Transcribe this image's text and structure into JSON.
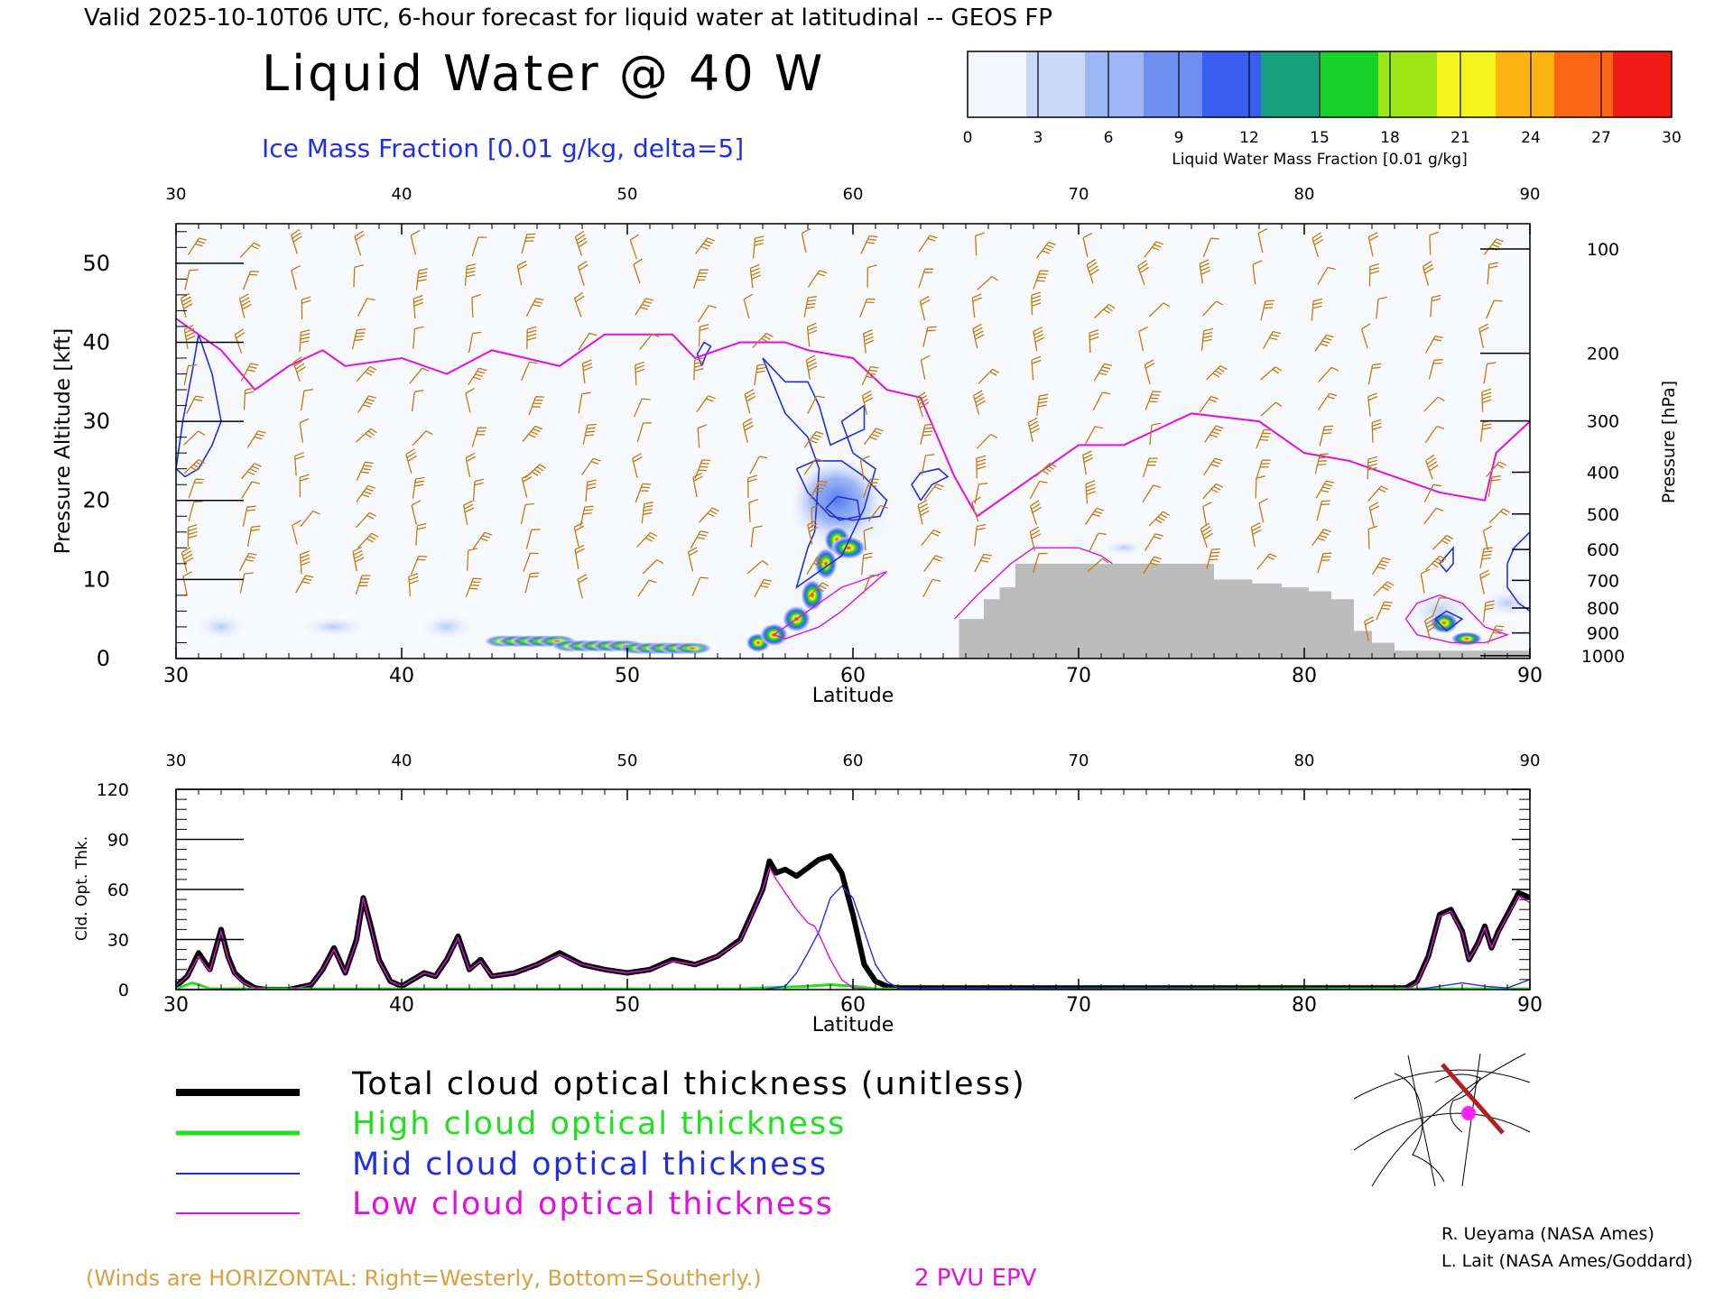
{
  "header": {
    "valid_line": "Valid 2025-10-10T06 UTC, 6-hour forecast for liquid water at latitudinal -- GEOS FP",
    "main_title": "Liquid Water @ 40 W",
    "ice_label": "Ice Mass Fraction [0.01 g/kg, delta=5]"
  },
  "colorbar": {
    "ticks": [
      "0",
      "3",
      "6",
      "9",
      "12",
      "15",
      "18",
      "21",
      "24",
      "27",
      "30"
    ],
    "label": "Liquid Water Mass Fraction [0.01 g/kg]",
    "colors": [
      "#f4f6fe",
      "#c9d8fb",
      "#9db7f6",
      "#6f8ff0",
      "#3a5ef0",
      "#1aa07f",
      "#17d02a",
      "#9de61a",
      "#f4f51c",
      "#fbb414",
      "#fb6616",
      "#f01b14"
    ]
  },
  "colors": {
    "ice_contour": "#2030e0",
    "epv_line": "#e010e0",
    "wind_barb": "#c07a10",
    "terrain": "#bcbcbc",
    "total_line": "#000000",
    "high_line": "#20e020",
    "mid_line": "#2030e0",
    "low_line": "#e010e0"
  },
  "top_panel": {
    "x_ticks": [
      "30",
      "40",
      "50",
      "60",
      "70",
      "80",
      "90"
    ],
    "x_label": "Latitude",
    "y_ticks": [
      "0",
      "10",
      "20",
      "30",
      "40",
      "50"
    ],
    "y_label": "Pressure Altitude [kft]",
    "p_ticks": [
      "100",
      "200",
      "300",
      "400",
      "500",
      "600",
      "700",
      "800",
      "900",
      "1000"
    ],
    "p_label": "Pressure [hPa]"
  },
  "bottom_panel": {
    "x_ticks": [
      "30",
      "40",
      "50",
      "60",
      "70",
      "80",
      "90"
    ],
    "x_label": "Latitude",
    "y_ticks": [
      "0",
      "30",
      "60",
      "90",
      "120"
    ],
    "y_label": "Cld. Opt. Thk."
  },
  "legend": {
    "total": "Total cloud optical thickness (unitless)",
    "high": "High cloud optical thickness",
    "mid": "Mid cloud optical thickness",
    "low": "Low cloud optical thickness"
  },
  "footer": {
    "winds_note": "(Winds are HORIZONTAL: Right=Westerly, Bottom=Southerly.)",
    "epv_label": "2 PVU EPV",
    "credit_1": "R. Ueyama (NASA Ames)",
    "credit_2": "L. Lait (NASA Ames/Goddard)"
  },
  "chart_data": [
    {
      "type": "heatmap",
      "title": "Liquid Water @ 40 W",
      "xlabel": "Latitude",
      "ylabel": "Pressure Altitude [kft]",
      "xlim": [
        30,
        90
      ],
      "ylim": [
        0,
        55
      ],
      "secondary_ylabel": "Pressure [hPa]",
      "colorbar_range": [
        0,
        30
      ],
      "liquid_water_features": [
        {
          "lat_range": [
            45,
            53
          ],
          "alt_kft": 2,
          "max_value": 19
        },
        {
          "lat_range": [
            55,
            61
          ],
          "alt_kft": [
            0,
            17
          ],
          "max_value": 25
        },
        {
          "lat_range": [
            85,
            89
          ],
          "alt_kft": [
            1,
            5
          ],
          "max_value": 22
        }
      ],
      "epv_2pvu_line": {
        "lat": [
          30,
          32,
          33.5,
          35,
          36.5,
          37.5,
          40,
          42,
          44,
          47,
          49,
          52,
          53,
          55,
          57,
          58,
          60,
          61.5,
          63,
          64.5,
          65.5,
          67,
          70,
          72,
          75,
          78,
          80,
          82,
          84,
          86,
          88,
          88.5,
          90
        ],
        "kft": [
          43,
          39,
          34,
          37,
          39,
          37,
          38,
          36,
          39,
          37,
          41,
          41,
          38,
          40,
          40,
          39,
          38,
          34,
          33,
          23,
          18,
          21,
          27,
          27,
          31,
          30,
          26,
          25,
          23,
          21,
          20,
          26,
          30
        ]
      },
      "terrain_kft": {
        "lat": [
          30,
          64.7,
          65.8,
          66.5,
          67.2,
          76,
          77.7,
          79,
          80.2,
          81.2,
          82.2,
          83,
          84,
          90
        ],
        "kft": [
          0,
          5,
          7.5,
          9,
          12,
          10,
          9.5,
          9,
          8.5,
          7.5,
          3.5,
          2,
          1,
          0
        ]
      }
    },
    {
      "type": "line",
      "xlabel": "Latitude",
      "ylabel": "Cld. Opt. Thk.",
      "xlim": [
        30,
        90
      ],
      "ylim": [
        0,
        120
      ],
      "series": [
        {
          "name": "Total cloud optical thickness (unitless)",
          "x": [
            30,
            30.5,
            31,
            31.5,
            32,
            32.3,
            32.6,
            33,
            33.5,
            34,
            35,
            36,
            36.5,
            37,
            37.5,
            38,
            38.3,
            38.6,
            39,
            39.5,
            40,
            41,
            41.5,
            42,
            42.5,
            43,
            43.5,
            44,
            45,
            46,
            47,
            48,
            49,
            50,
            51,
            52,
            53,
            54,
            55,
            55.5,
            56,
            56.3,
            56.6,
            57,
            57.5,
            58,
            58.5,
            59,
            59.5,
            60,
            60.5,
            61,
            61.5,
            62,
            63,
            70,
            80,
            84.5,
            85,
            85.5,
            86,
            86.5,
            87,
            87.3,
            87.7,
            88,
            88.3,
            88.6,
            89,
            89.5,
            90
          ],
          "values": [
            2,
            8,
            22,
            12,
            36,
            20,
            10,
            5,
            1,
            0,
            0,
            3,
            12,
            25,
            10,
            30,
            55,
            40,
            18,
            5,
            2,
            10,
            8,
            18,
            32,
            12,
            18,
            8,
            10,
            15,
            22,
            15,
            12,
            10,
            12,
            18,
            15,
            20,
            30,
            45,
            60,
            77,
            70,
            72,
            68,
            73,
            78,
            80,
            70,
            45,
            15,
            5,
            2,
            1,
            1,
            1,
            1,
            1,
            5,
            20,
            45,
            48,
            35,
            18,
            28,
            38,
            25,
            35,
            45,
            58,
            55
          ]
        },
        {
          "name": "High cloud optical thickness",
          "x": [
            30,
            30.7,
            31,
            31.5,
            32,
            55,
            58,
            59,
            60,
            61,
            62,
            90
          ],
          "values": [
            0.5,
            4,
            3,
            0.5,
            0.5,
            0.5,
            2,
            3,
            2,
            0.5,
            0.3,
            0.5
          ]
        },
        {
          "name": "Mid cloud optical thickness",
          "x": [
            30,
            56,
            57,
            57.5,
            58,
            58.5,
            59,
            59.5,
            60,
            60.5,
            61,
            61.5,
            62,
            85,
            86,
            87,
            88,
            89,
            90
          ],
          "values": [
            0,
            0,
            2,
            10,
            22,
            35,
            55,
            62,
            55,
            35,
            15,
            5,
            1,
            0,
            2,
            4,
            2,
            1,
            6
          ]
        },
        {
          "name": "Low cloud optical thickness",
          "x": [
            30,
            30.5,
            31,
            31.5,
            32,
            32.3,
            32.6,
            33,
            33.5,
            34,
            35,
            36,
            36.5,
            37,
            37.5,
            38,
            38.3,
            38.6,
            39,
            39.5,
            40,
            41,
            41.5,
            42,
            42.5,
            43,
            43.5,
            44,
            45,
            46,
            47,
            48,
            49,
            50,
            51,
            52,
            53,
            54,
            55,
            55.5,
            56,
            56.3,
            56.6,
            57,
            57.5,
            58,
            58.3,
            58.6,
            59,
            59.5,
            60,
            61,
            84.5,
            85,
            85.5,
            86,
            86.5,
            87,
            87.3,
            87.7,
            88,
            88.3,
            88.6,
            89,
            89.5,
            90
          ],
          "values": [
            2,
            8,
            20,
            11,
            35,
            19,
            9,
            4,
            1,
            0,
            0,
            3,
            12,
            24,
            10,
            29,
            55,
            39,
            17,
            5,
            2,
            10,
            8,
            18,
            31,
            12,
            17,
            8,
            10,
            15,
            21,
            15,
            12,
            10,
            12,
            17,
            15,
            20,
            29,
            44,
            60,
            73,
            66,
            58,
            48,
            40,
            38,
            30,
            18,
            6,
            1,
            0,
            0,
            4,
            19,
            44,
            47,
            34,
            18,
            27,
            37,
            25,
            34,
            44,
            56,
            52
          ]
        }
      ]
    }
  ]
}
